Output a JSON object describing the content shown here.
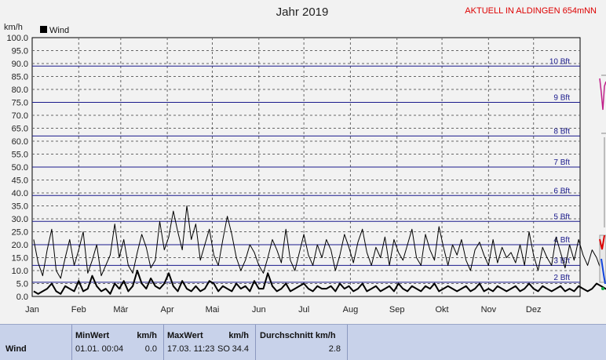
{
  "header": {
    "title": "Jahr 2019",
    "aktuell": "AKTUELL IN ALDINGEN 654mNN",
    "unit_label": "km/h"
  },
  "legend": {
    "label": "Wind",
    "color": "#000000"
  },
  "chart_data": {
    "type": "line",
    "title": "Jahr 2019",
    "ylabel": "km/h",
    "ylim": [
      0,
      100
    ],
    "yticks": [
      "0.0",
      "5.0",
      "10.0",
      "15.0",
      "20.0",
      "25.0",
      "30.0",
      "35.0",
      "40.0",
      "45.0",
      "50.0",
      "55.0",
      "60.0",
      "65.0",
      "70.0",
      "75.0",
      "80.0",
      "85.0",
      "90.0",
      "95.0",
      "100.0"
    ],
    "months": [
      "Jan",
      "Feb",
      "Mär",
      "Apr",
      "Mai",
      "Jun",
      "Jul",
      "Aug",
      "Sep",
      "Okt",
      "Nov",
      "Dez"
    ],
    "month_days": [
      0,
      31,
      59,
      90,
      120,
      151,
      181,
      212,
      243,
      273,
      304,
      334
    ],
    "grid": true,
    "beaufort": [
      {
        "label": "2 Bft",
        "value": 5.5
      },
      {
        "label": "3 Bft",
        "value": 12
      },
      {
        "label": "4 Bft",
        "value": 20
      },
      {
        "label": "5 Bft",
        "value": 29
      },
      {
        "label": "6 Bft",
        "value": 39
      },
      {
        "label": "7 Bft",
        "value": 50
      },
      {
        "label": "8 Bft",
        "value": 62
      },
      {
        "label": "9 Bft",
        "value": 75
      },
      {
        "label": "10 Bft",
        "value": 89
      }
    ],
    "series": [
      {
        "name": "Wind",
        "role": "max",
        "x_start": 1,
        "x_step": 3,
        "values": [
          22,
          13,
          8,
          18,
          26,
          10,
          7,
          15,
          22,
          12,
          18,
          25,
          9,
          14,
          20,
          8,
          12,
          16,
          28,
          15,
          22,
          12,
          9,
          17,
          24,
          19,
          11,
          14,
          29,
          18,
          23,
          33,
          25,
          18,
          35,
          22,
          28,
          14,
          20,
          26,
          16,
          12,
          22,
          31,
          24,
          15,
          10,
          14,
          20,
          17,
          12,
          9,
          15,
          22,
          18,
          13,
          26,
          14,
          10,
          17,
          24,
          16,
          12,
          20,
          15,
          22,
          18,
          10,
          16,
          24,
          19,
          13,
          21,
          26,
          17,
          12,
          19,
          15,
          23,
          12,
          22,
          17,
          14,
          20,
          26,
          15,
          12,
          24,
          18,
          14,
          27,
          19,
          12,
          20,
          16,
          22,
          14,
          10,
          18,
          21,
          16,
          12,
          22,
          13,
          19,
          15,
          17,
          13,
          20,
          12,
          25,
          16,
          10,
          19,
          15,
          12,
          23,
          17,
          11,
          20,
          14,
          22,
          16,
          12,
          18,
          15,
          10,
          13,
          20,
          16,
          12,
          27,
          18,
          14,
          22,
          12,
          9,
          26,
          17
        ]
      },
      {
        "name": "Wind",
        "role": "mean",
        "x_start": 1,
        "x_step": 3,
        "values": [
          2,
          1,
          2,
          3,
          5,
          2,
          1,
          4,
          3,
          2,
          6,
          2,
          3,
          8,
          4,
          2,
          3,
          1,
          5,
          3,
          6,
          2,
          4,
          10,
          5,
          3,
          7,
          4,
          3,
          5,
          9,
          4,
          2,
          6,
          3,
          2,
          4,
          2,
          3,
          6,
          5,
          2,
          4,
          3,
          2,
          5,
          3,
          4,
          2,
          6,
          3,
          3,
          9,
          4,
          2,
          3,
          5,
          2,
          3,
          4,
          5,
          3,
          2,
          4,
          3,
          3,
          4,
          2,
          5,
          3,
          4,
          2,
          3,
          5,
          2,
          3,
          4,
          2,
          3,
          4,
          2,
          5,
          3,
          2,
          4,
          3,
          2,
          4,
          3,
          5,
          2,
          3,
          4,
          3,
          2,
          3,
          4,
          2,
          3,
          5,
          2,
          3,
          2,
          4,
          3,
          2,
          3,
          4,
          2,
          3,
          5,
          3,
          2,
          4,
          3,
          2,
          3,
          4,
          2,
          3,
          2,
          4,
          3,
          2,
          3,
          5,
          4,
          3,
          2,
          3,
          4,
          2,
          5,
          3,
          2,
          4,
          6,
          3,
          2
        ]
      }
    ]
  },
  "stats": {
    "row_label": "Wind",
    "min_header": "MinWert",
    "min_unit": "km/h",
    "min_time": "01.01.  00:04",
    "min_value": "0.0",
    "max_header": "MaxWert",
    "max_unit": "km/h",
    "max_time": "17.03.  11:23",
    "max_dir": "SO",
    "max_value": "34.4",
    "avg_header": "Durchschnitt km/h",
    "avg_value": "2.8"
  }
}
